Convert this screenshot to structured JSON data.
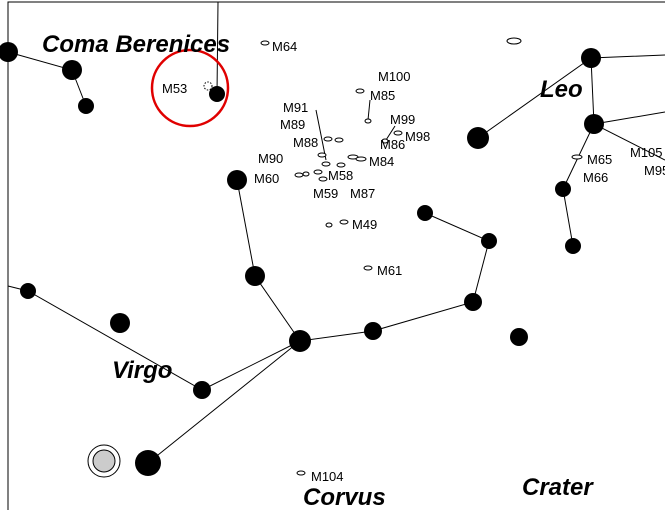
{
  "constellations": [
    "Coma Berenices",
    "Leo",
    "Virgo",
    "Corvus",
    "Crater"
  ],
  "objects": [
    "M64",
    "M53",
    "M100",
    "M85",
    "M91",
    "M99",
    "M89",
    "M98",
    "M88",
    "M86",
    "M90",
    "M84",
    "M60",
    "M58",
    "M59",
    "M87",
    "M49",
    "M61",
    "M65",
    "M66",
    "M105",
    "M95",
    "M104"
  ]
}
